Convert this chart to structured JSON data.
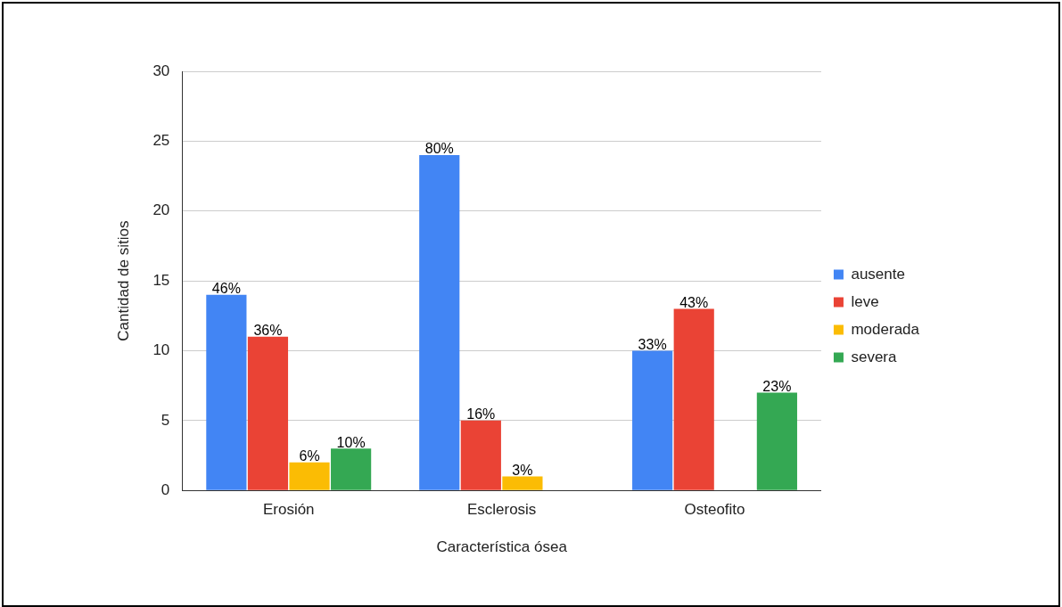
{
  "chart_data": {
    "type": "bar",
    "xlabel": "Característica ósea",
    "ylabel": "Cantidad de sitios",
    "categories": [
      "Erosión",
      "Esclerosis",
      "Osteofito"
    ],
    "series": [
      {
        "name": "ausente",
        "color": "#4285f4",
        "values": [
          14,
          24,
          10
        ]
      },
      {
        "name": "leve",
        "color": "#ea4335",
        "values": [
          11,
          5,
          13
        ]
      },
      {
        "name": "moderada",
        "color": "#fbbc04",
        "values": [
          2,
          1,
          null
        ]
      },
      {
        "name": "severa",
        "color": "#34a853",
        "values": [
          3,
          null,
          7
        ]
      }
    ],
    "annotations": [
      "46%",
      "36%",
      "6%",
      "10%",
      "80%",
      "16%",
      "3%",
      "33%",
      "43%",
      "23%"
    ],
    "ylim": [
      0,
      30
    ],
    "yticks": [
      0,
      5,
      10,
      15,
      20,
      25,
      30
    ],
    "grid": "y",
    "legend": "right"
  }
}
